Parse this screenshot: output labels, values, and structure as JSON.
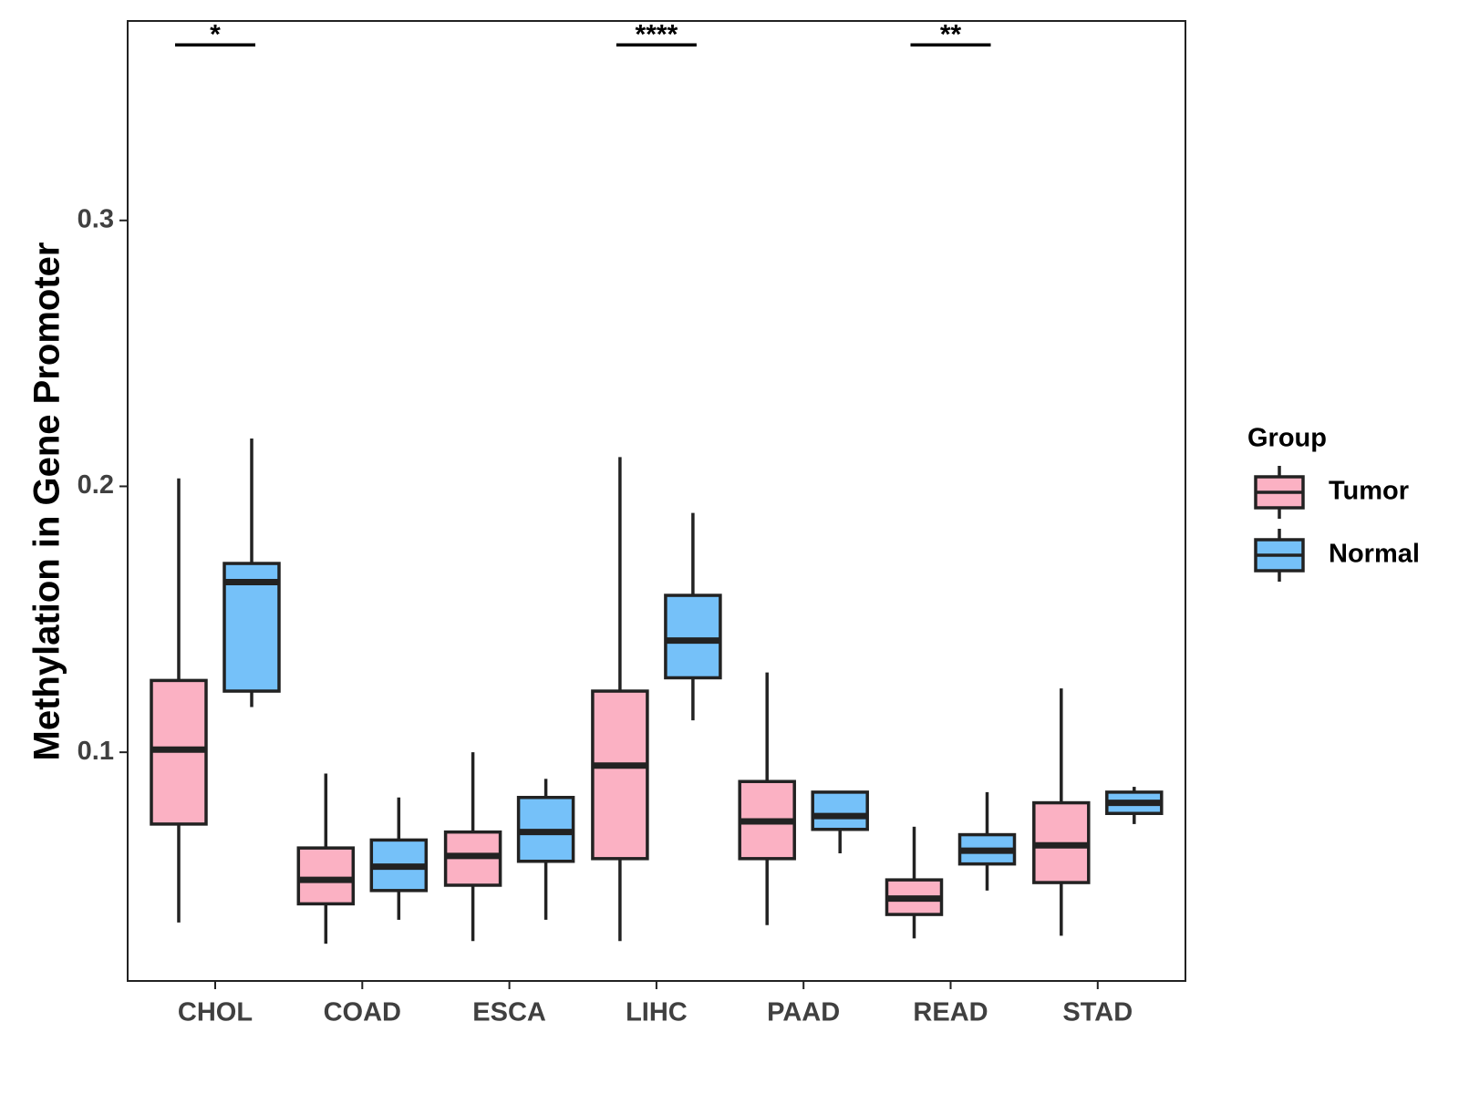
{
  "chart_data": {
    "type": "boxplot",
    "title": "",
    "xlabel": "",
    "ylabel": "Methylation in Gene Promoter",
    "ylim": [
      0.014,
      0.375
    ],
    "yticks": [
      0.1,
      0.2,
      0.3
    ],
    "ytick_labels": [
      "0.1",
      "0.2",
      "0.3"
    ],
    "categories": [
      "CHOL",
      "COAD",
      "ESCA",
      "LIHC",
      "PAAD",
      "READ",
      "STAD"
    ],
    "legend": {
      "title": "Group",
      "position": "right",
      "entries": [
        {
          "name": "Tumor",
          "color": "#FBB1C3"
        },
        {
          "name": "Normal",
          "color": "#75C1F9"
        }
      ]
    },
    "series": [
      {
        "name": "Tumor",
        "color": "#FBB1C3",
        "boxes": [
          {
            "min": 0.036,
            "q1": 0.073,
            "median": 0.101,
            "q3": 0.127,
            "max": 0.203
          },
          {
            "min": 0.028,
            "q1": 0.043,
            "median": 0.052,
            "q3": 0.064,
            "max": 0.092
          },
          {
            "min": 0.029,
            "q1": 0.05,
            "median": 0.061,
            "q3": 0.07,
            "max": 0.1
          },
          {
            "min": 0.029,
            "q1": 0.06,
            "median": 0.095,
            "q3": 0.123,
            "max": 0.211
          },
          {
            "min": 0.035,
            "q1": 0.06,
            "median": 0.074,
            "q3": 0.089,
            "max": 0.13
          },
          {
            "min": 0.03,
            "q1": 0.039,
            "median": 0.045,
            "q3": 0.052,
            "max": 0.072
          },
          {
            "min": 0.031,
            "q1": 0.051,
            "median": 0.065,
            "q3": 0.081,
            "max": 0.124
          }
        ]
      },
      {
        "name": "Normal",
        "color": "#75C1F9",
        "boxes": [
          {
            "min": 0.117,
            "q1": 0.123,
            "median": 0.164,
            "q3": 0.171,
            "max": 0.218
          },
          {
            "min": 0.037,
            "q1": 0.048,
            "median": 0.057,
            "q3": 0.067,
            "max": 0.083
          },
          {
            "min": 0.037,
            "q1": 0.059,
            "median": 0.07,
            "q3": 0.083,
            "max": 0.09
          },
          {
            "min": 0.112,
            "q1": 0.128,
            "median": 0.142,
            "q3": 0.159,
            "max": 0.19
          },
          {
            "min": 0.062,
            "q1": 0.071,
            "median": 0.076,
            "q3": 0.085,
            "max": 0.085
          },
          {
            "min": 0.048,
            "q1": 0.058,
            "median": 0.063,
            "q3": 0.069,
            "max": 0.085
          },
          {
            "min": 0.073,
            "q1": 0.077,
            "median": 0.081,
            "q3": 0.085,
            "max": 0.087
          }
        ]
      }
    ],
    "significance": [
      {
        "category": "CHOL",
        "label": "*",
        "y": 0.366
      },
      {
        "category": "LIHC",
        "label": "****",
        "y": 0.366
      },
      {
        "category": "READ",
        "label": "**",
        "y": 0.366
      }
    ]
  }
}
